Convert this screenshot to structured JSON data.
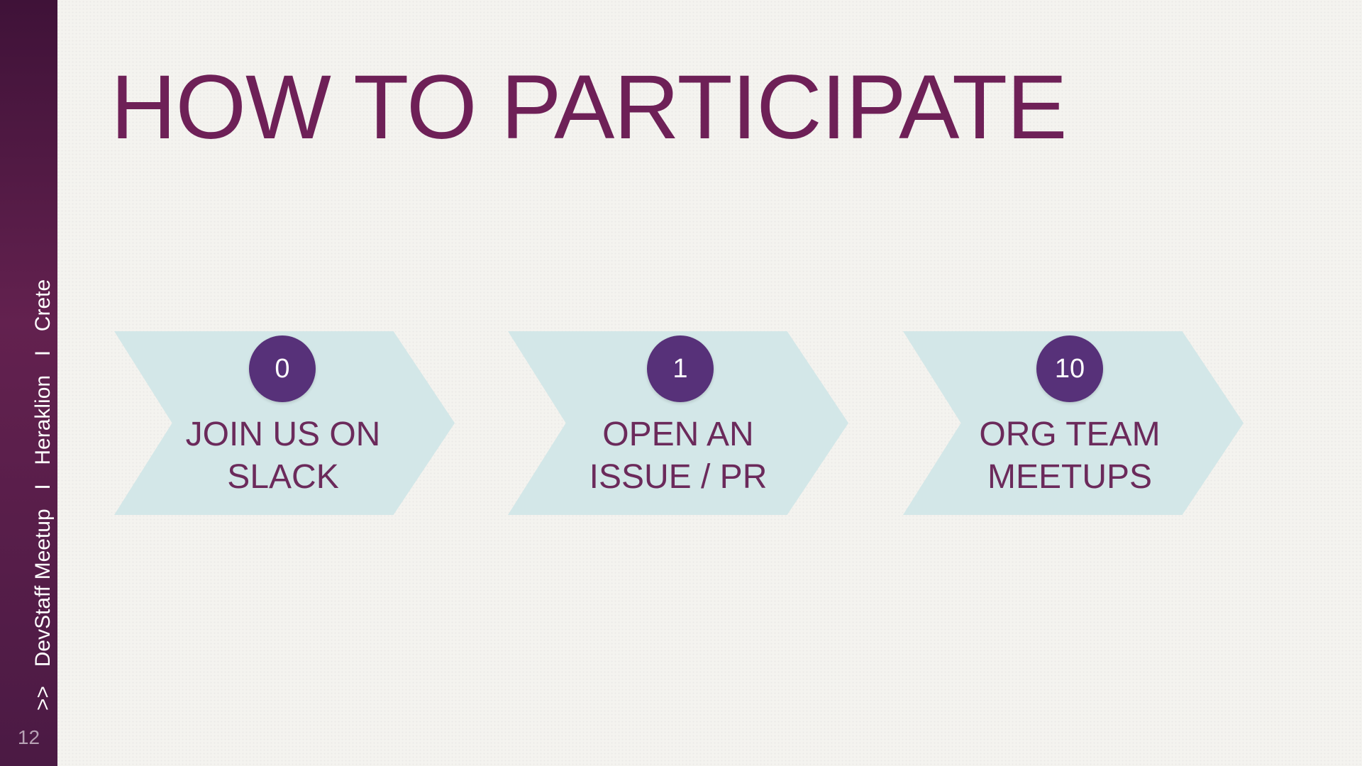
{
  "sidebar": {
    "prefix": ">>",
    "event": "DevStaff Meetup",
    "separator_1": "I",
    "city": "Heraklion",
    "separator_2": "I",
    "region": "Crete",
    "slide_number": "12"
  },
  "slide": {
    "title": "HOW TO PARTICIPATE"
  },
  "steps": [
    {
      "number": "0",
      "line1": "JOIN US ON",
      "line2": "SLACK"
    },
    {
      "number": "1",
      "line1": "OPEN AN",
      "line2": "ISSUE / PR"
    },
    {
      "number": "10",
      "line1": "ORG TEAM",
      "line2": "MEETUPS"
    }
  ],
  "colors": {
    "sidebar": "#63214f",
    "title": "#6e2057",
    "chevron": "#d3e7e8",
    "badge": "#573179",
    "label": "#6b2a5b",
    "background": "#f4f3ef"
  }
}
